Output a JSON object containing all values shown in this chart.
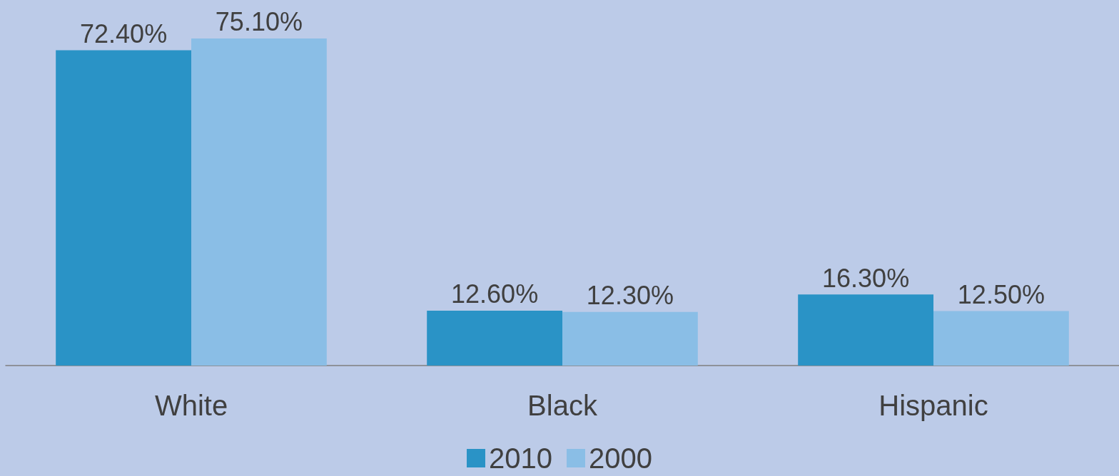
{
  "chart_data": {
    "type": "bar",
    "categories": [
      "White",
      "Black",
      "Hispanic"
    ],
    "series": [
      {
        "name": "2010",
        "color": "#2a93c6",
        "values": [
          72.4,
          12.6,
          16.3
        ],
        "value_labels": [
          "72.40%",
          "12.60%",
          "16.30%"
        ]
      },
      {
        "name": "2000",
        "color": "#8abee6",
        "values": [
          75.1,
          12.3,
          12.5
        ],
        "value_labels": [
          "75.10%",
          "12.30%",
          "12.50%"
        ]
      }
    ],
    "legend": "bottom"
  }
}
